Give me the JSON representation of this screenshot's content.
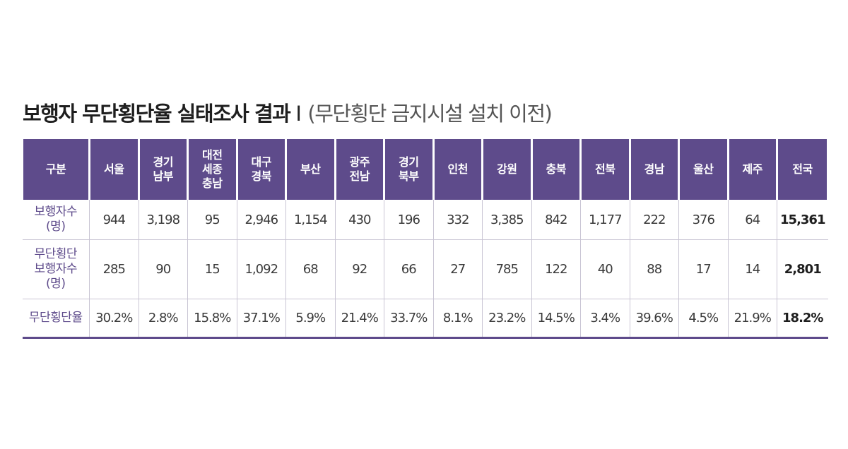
{
  "title": {
    "main": "보행자 무단횡단율 실태조사 결과",
    "separator": "I",
    "sub": "(무단횡단 금지시설 설치 이전)"
  },
  "colors": {
    "header_bg": "#5e4b8b",
    "accent_text": "#5e4b8b",
    "grid": "#c9c5d4"
  },
  "chart_data": {
    "type": "table",
    "columns": [
      [
        "구분"
      ],
      [
        "서울"
      ],
      [
        "경기",
        "남부"
      ],
      [
        "대전",
        "세종",
        "충남"
      ],
      [
        "대구",
        "경북"
      ],
      [
        "부산"
      ],
      [
        "광주",
        "전남"
      ],
      [
        "경기",
        "북부"
      ],
      [
        "인천"
      ],
      [
        "강원"
      ],
      [
        "충북"
      ],
      [
        "전북"
      ],
      [
        "경남"
      ],
      [
        "울산"
      ],
      [
        "제주"
      ],
      [
        "전국"
      ]
    ],
    "rows": [
      {
        "label": [
          "보행자수",
          "(명)"
        ],
        "values": [
          "944",
          "3,198",
          "95",
          "2,946",
          "1,154",
          "430",
          "196",
          "332",
          "3,385",
          "842",
          "1,177",
          "222",
          "376",
          "64"
        ],
        "total": "15,361"
      },
      {
        "label": [
          "무단횡단",
          "보행자수",
          "(명)"
        ],
        "values": [
          "285",
          "90",
          "15",
          "1,092",
          "68",
          "92",
          "66",
          "27",
          "785",
          "122",
          "40",
          "88",
          "17",
          "14"
        ],
        "total": "2,801"
      },
      {
        "label": [
          "무단횡단율"
        ],
        "values": [
          "30.2%",
          "2.8%",
          "15.8%",
          "37.1%",
          "5.9%",
          "21.4%",
          "33.7%",
          "8.1%",
          "23.2%",
          "14.5%",
          "3.4%",
          "39.6%",
          "4.5%",
          "21.9%"
        ],
        "total": "18.2%"
      }
    ]
  }
}
